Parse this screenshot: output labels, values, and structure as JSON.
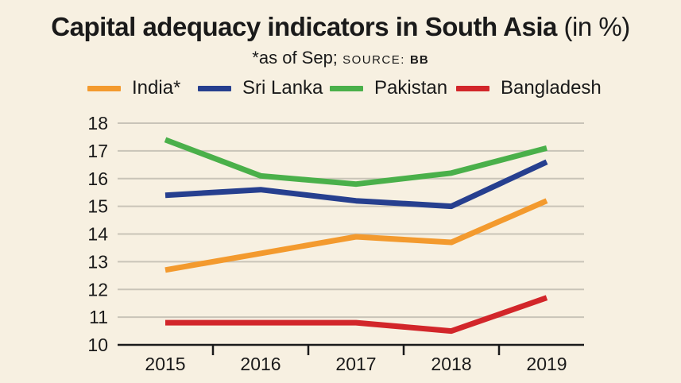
{
  "header": {
    "title": "Capital adequacy indicators in South Asia",
    "title_unit": "(in %)",
    "note": "*as of Sep;",
    "source_label": "SOURCE:",
    "source_value": "BB"
  },
  "colors": {
    "background": "#f7f0e1",
    "grid": "#c9c4b8",
    "axis": "#1a1a1a",
    "india": "#f39a2e",
    "sri_lanka": "#263f8f",
    "pakistan": "#4ab04a",
    "bangladesh": "#d2262a"
  },
  "chart_data": {
    "type": "line",
    "title": "Capital adequacy indicators in South Asia (in %)",
    "subtitle": "*as of Sep; SOURCE: BB",
    "xlabel": "",
    "ylabel": "",
    "categories": [
      "2015",
      "2016",
      "2017",
      "2018",
      "2019"
    ],
    "ylim": [
      10,
      18
    ],
    "yticks": [
      "18",
      "17",
      "16",
      "15",
      "14",
      "13",
      "12",
      "11",
      "10"
    ],
    "grid": true,
    "legend_position": "top",
    "series": [
      {
        "name": "India*",
        "key": "india",
        "values": [
          12.7,
          13.3,
          13.9,
          13.7,
          15.2
        ]
      },
      {
        "name": "Sri Lanka",
        "key": "sri_lanka",
        "values": [
          15.4,
          15.6,
          15.2,
          15.0,
          16.6
        ]
      },
      {
        "name": "Pakistan",
        "key": "pakistan",
        "values": [
          17.4,
          16.1,
          15.8,
          16.2,
          17.1
        ]
      },
      {
        "name": "Bangladesh",
        "key": "bangladesh",
        "values": [
          10.8,
          10.8,
          10.8,
          10.5,
          11.7
        ]
      }
    ]
  }
}
